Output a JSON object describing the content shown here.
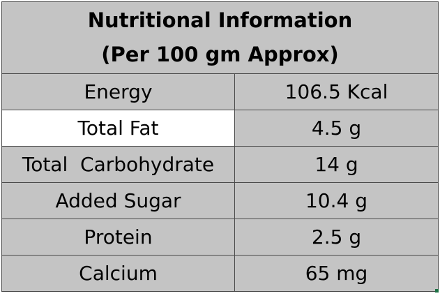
{
  "table": {
    "title_line1": "Nutritional Information",
    "title_line2": "(Per 100 gm Approx)",
    "rows": [
      {
        "name": "Energy",
        "value": "106.5 Kcal"
      },
      {
        "name": "Total Fat",
        "value": "4.5 g"
      },
      {
        "name": "Total  Carbohydrate",
        "value": "14 g"
      },
      {
        "name": "Added Sugar",
        "value": "10.4 g"
      },
      {
        "name": "Protein",
        "value": "2.5 g"
      },
      {
        "name": "Calcium",
        "value": "65 mg"
      }
    ]
  },
  "colors": {
    "cell_background": "#c4c4c4",
    "selected_cell_background": "#ffffff",
    "border": "#4a4a4a",
    "fill_handle": "#1e7145"
  }
}
